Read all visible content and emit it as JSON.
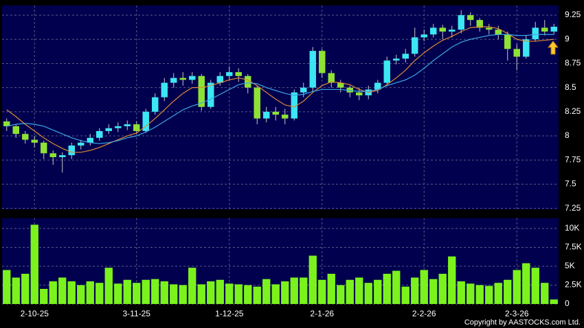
{
  "chart_data": [
    {
      "type": "candlestick",
      "categories": [
        null,
        null,
        null,
        "2-10-25",
        null,
        null,
        null,
        null,
        null,
        null,
        null,
        null,
        null,
        null,
        "3-11-25",
        null,
        null,
        null,
        null,
        null,
        null,
        null,
        null,
        null,
        "1-12-25",
        null,
        null,
        null,
        null,
        null,
        null,
        null,
        null,
        null,
        "2-1-26",
        null,
        null,
        null,
        null,
        null,
        null,
        null,
        null,
        null,
        null,
        "2-2-26",
        null,
        null,
        null,
        null,
        null,
        null,
        null,
        null,
        null,
        "2-3-26",
        null,
        null,
        null,
        null
      ],
      "open": [
        8.15,
        8.1,
        8.02,
        7.96,
        7.93,
        7.82,
        7.78,
        7.8,
        7.9,
        7.93,
        7.98,
        8.05,
        8.08,
        8.1,
        8.12,
        8.05,
        8.25,
        8.4,
        8.55,
        8.6,
        8.58,
        8.62,
        8.3,
        8.55,
        8.62,
        8.66,
        8.62,
        8.5,
        8.18,
        8.25,
        8.22,
        8.18,
        8.45,
        8.5,
        8.88,
        8.65,
        8.55,
        8.5,
        8.45,
        8.42,
        8.48,
        8.55,
        8.78,
        8.8,
        8.85,
        9.02,
        9.05,
        9.12,
        9.08,
        9.1,
        9.25,
        9.2,
        9.12,
        9.1,
        9.05,
        8.9,
        8.82,
        9.0,
        9.12,
        9.08
      ],
      "high": [
        8.18,
        8.12,
        8.05,
        8.0,
        7.95,
        7.85,
        7.83,
        7.93,
        7.96,
        8.02,
        8.08,
        8.12,
        8.14,
        8.16,
        8.15,
        8.28,
        8.44,
        8.6,
        8.65,
        8.66,
        8.66,
        8.64,
        8.58,
        8.66,
        8.72,
        8.7,
        8.64,
        8.52,
        8.3,
        8.3,
        8.28,
        8.48,
        8.55,
        8.92,
        8.9,
        8.68,
        8.58,
        8.52,
        8.5,
        8.52,
        8.58,
        8.82,
        8.84,
        8.9,
        9.12,
        9.1,
        9.16,
        9.15,
        9.14,
        9.3,
        9.28,
        9.22,
        9.16,
        9.14,
        9.08,
        8.95,
        9.04,
        9.18,
        9.2,
        9.16
      ],
      "low": [
        8.05,
        7.98,
        7.92,
        7.88,
        7.76,
        7.7,
        7.62,
        7.76,
        7.86,
        7.9,
        7.95,
        8.02,
        8.04,
        8.06,
        8.02,
        8.03,
        8.22,
        8.36,
        8.5,
        8.52,
        8.54,
        8.26,
        8.28,
        8.52,
        8.58,
        8.56,
        8.44,
        8.12,
        8.14,
        8.16,
        8.12,
        8.16,
        8.4,
        8.46,
        8.6,
        8.5,
        8.45,
        8.4,
        8.37,
        8.38,
        8.44,
        8.52,
        8.74,
        8.76,
        8.82,
        8.98,
        9.02,
        9.0,
        9.02,
        9.06,
        9.14,
        9.08,
        9.05,
        9.0,
        8.78,
        8.68,
        8.8,
        8.98,
        9.04,
        9.05
      ],
      "close": [
        8.1,
        8.02,
        7.96,
        7.93,
        7.82,
        7.78,
        7.8,
        7.9,
        7.93,
        7.98,
        8.05,
        8.08,
        8.1,
        8.12,
        8.05,
        8.25,
        8.4,
        8.55,
        8.6,
        8.58,
        8.62,
        8.3,
        8.55,
        8.62,
        8.66,
        8.62,
        8.5,
        8.18,
        8.25,
        8.22,
        8.18,
        8.45,
        8.5,
        8.88,
        8.65,
        8.55,
        8.5,
        8.45,
        8.42,
        8.48,
        8.55,
        8.78,
        8.8,
        8.85,
        9.02,
        9.05,
        9.12,
        9.08,
        9.1,
        9.25,
        9.2,
        9.12,
        9.1,
        9.05,
        8.9,
        8.82,
        9.0,
        9.12,
        9.08,
        9.13
      ],
      "up_color": "#3ce6f2",
      "down_color": "#8ee234",
      "series": [
        {
          "color": "#e38b32",
          "values": [
            8.27,
            8.2,
            8.12,
            8.05,
            7.98,
            7.92,
            7.87,
            7.83,
            7.83,
            7.85,
            7.88,
            7.92,
            7.96,
            8.0,
            8.03,
            8.1,
            8.18,
            8.27,
            8.36,
            8.44,
            8.5,
            8.5,
            8.52,
            8.55,
            8.58,
            8.6,
            8.58,
            8.52,
            8.45,
            8.38,
            8.32,
            8.3,
            8.36,
            8.45,
            8.52,
            8.56,
            8.55,
            8.53,
            8.48,
            8.45,
            8.47,
            8.53,
            8.6,
            8.68,
            8.78,
            8.86,
            8.93,
            8.99,
            9.03,
            9.08,
            9.12,
            9.13,
            9.13,
            9.11,
            9.06,
            9.0,
            8.98,
            8.98,
            8.99,
            9.0
          ]
        },
        {
          "color": "#3fa6e6",
          "values": [
            8.1,
            8.12,
            8.13,
            8.12,
            8.1,
            8.06,
            8.02,
            7.98,
            7.95,
            7.93,
            7.92,
            7.93,
            7.95,
            7.98,
            8.0,
            8.04,
            8.09,
            8.15,
            8.21,
            8.27,
            8.31,
            8.34,
            8.38,
            8.43,
            8.48,
            8.53,
            8.55,
            8.54,
            8.5,
            8.47,
            8.44,
            8.42,
            8.43,
            8.46,
            8.48,
            8.48,
            8.48,
            8.47,
            8.46,
            8.46,
            8.48,
            8.52,
            8.55,
            8.58,
            8.63,
            8.7,
            8.78,
            8.85,
            8.92,
            8.97,
            9.0,
            9.02,
            9.04,
            9.05,
            9.05,
            9.04,
            9.04,
            9.05,
            9.05,
            9.05
          ]
        }
      ],
      "ylim": [
        7.24,
        9.35
      ],
      "yticks": [
        7.25,
        7.5,
        7.75,
        8,
        8.25,
        8.5,
        8.75,
        9,
        9.25
      ],
      "grid": true
    },
    {
      "type": "bar",
      "values": [
        4500,
        3500,
        4000,
        10500,
        2000,
        3000,
        3500,
        3000,
        2500,
        3000,
        2800,
        4800,
        2700,
        3200,
        2800,
        3200,
        3300,
        3000,
        2600,
        2500,
        4800,
        2600,
        3000,
        3200,
        2700,
        2600,
        2500,
        2300,
        3300,
        2600,
        3000,
        3500,
        3500,
        6400,
        3200,
        4000,
        2500,
        3200,
        3500,
        2800,
        3200,
        4000,
        4400,
        2300,
        3500,
        4500,
        3300,
        4000,
        6300,
        3000,
        2700,
        2500,
        2400,
        2800,
        3200,
        4500,
        5400,
        4800,
        2800,
        600
      ],
      "color": "#7cf21c",
      "ylim": [
        0,
        11360
      ],
      "yticks": [
        0,
        {
          "value": 2500,
          "label": "2.5K"
        },
        {
          "value": 5000,
          "label": "5K"
        },
        {
          "value": 7500,
          "label": "7.5K"
        },
        {
          "value": 10000,
          "label": "10K"
        }
      ],
      "grid": true
    }
  ],
  "footer": "Copyright by AASTOCKS.com Ltd."
}
